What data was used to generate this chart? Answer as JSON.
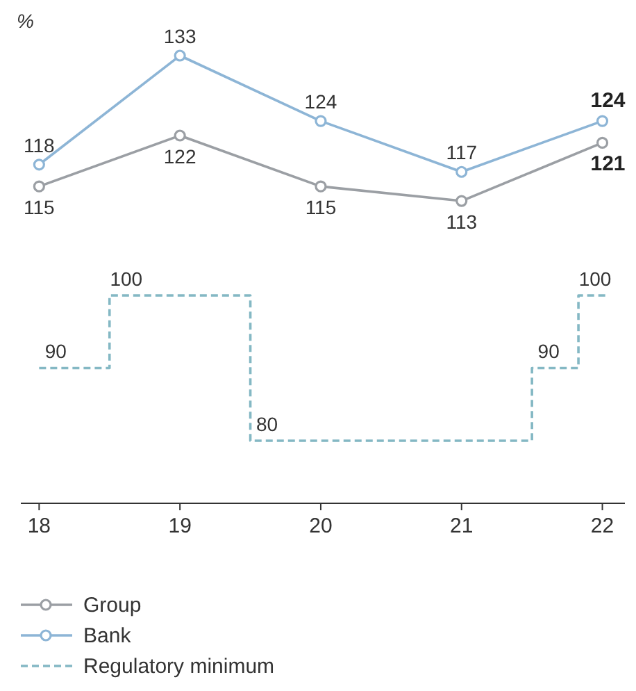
{
  "chart_data": {
    "type": "line",
    "ylabel": "%",
    "x": [
      18,
      19,
      20,
      21,
      22
    ],
    "xlim": [
      17.87,
      22.16
    ],
    "xticks": [
      18,
      19,
      20,
      21,
      22
    ],
    "tick_labels": "x",
    "marker": "circle",
    "data_labels": true,
    "legend": "bottom left",
    "series": [
      {
        "name": "Group",
        "color": "#9b9fa4",
        "values": [
          115,
          122,
          115,
          113,
          121
        ]
      },
      {
        "name": "Bank",
        "color": "#8db5d6",
        "values": [
          118,
          133,
          124,
          117,
          124
        ]
      },
      {
        "name": "Regulatory minimum",
        "type": "step",
        "color": "#84b8c4",
        "line_style": "dashed",
        "marker": "none",
        "x": [
          18,
          18.5,
          19.5,
          21.5,
          21.83,
          22.05
        ],
        "values": [
          90,
          100,
          80,
          90,
          100,
          100
        ],
        "value_labels": [
          "90",
          "100",
          "80",
          "90",
          "100",
          null
        ]
      }
    ]
  }
}
